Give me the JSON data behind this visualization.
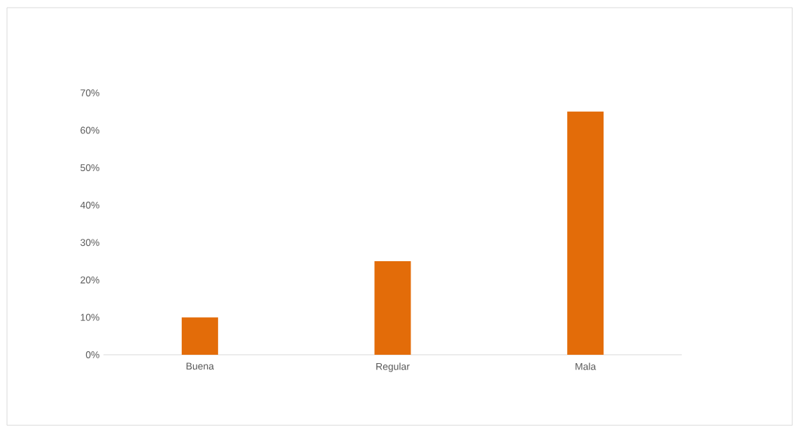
{
  "chart_data": {
    "type": "bar",
    "categories": [
      "Buena",
      "Regular",
      "Mala"
    ],
    "values": [
      10,
      25,
      65
    ],
    "color": "#e36c09",
    "ylim": [
      0,
      70
    ],
    "yticks": [
      {
        "value": 0,
        "label": "0%"
      },
      {
        "value": 10,
        "label": "10%"
      },
      {
        "value": 20,
        "label": "20%"
      },
      {
        "value": 30,
        "label": "30%"
      },
      {
        "value": 40,
        "label": "40%"
      },
      {
        "value": 50,
        "label": "50%"
      },
      {
        "value": 60,
        "label": "60%"
      },
      {
        "value": 70,
        "label": "70%"
      }
    ],
    "grid": false
  }
}
